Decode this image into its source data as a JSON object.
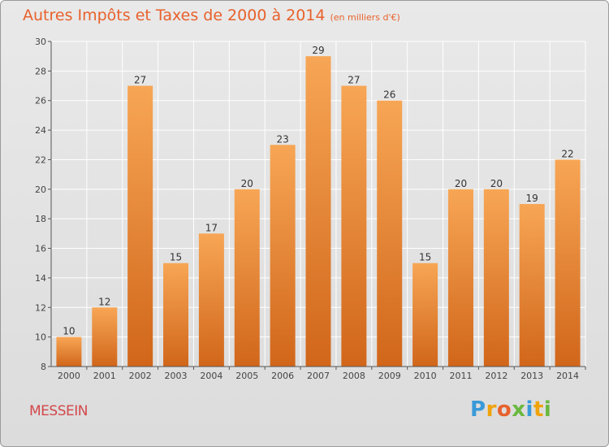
{
  "header": {
    "title": "Autres Impôts et Taxes de 2000 à 2014",
    "subtitle": "(en milliers d'€)"
  },
  "footer": {
    "commune": "MESSEIN",
    "logo_letters": [
      "P",
      "r",
      "o",
      "x",
      "i",
      "t",
      "i"
    ],
    "logo_colors": [
      "#3a9ad9",
      "#f0a30a",
      "#e8612c",
      "#6ab83f",
      "#3a9ad9",
      "#f0a30a",
      "#6ab83f"
    ]
  },
  "colors": {
    "bar_light": "#f7a655",
    "bar_dark": "#d1661a",
    "title": "#e8612c",
    "commune": "#d3484c"
  },
  "chart_data": {
    "type": "bar",
    "categories": [
      "2000",
      "2001",
      "2002",
      "2003",
      "2004",
      "2005",
      "2006",
      "2007",
      "2008",
      "2009",
      "2010",
      "2011",
      "2012",
      "2013",
      "2014"
    ],
    "values": [
      10,
      12,
      27,
      15,
      17,
      20,
      23,
      29,
      27,
      26,
      15,
      20,
      20,
      19,
      22
    ],
    "yticks": [
      8,
      10,
      12,
      14,
      16,
      18,
      20,
      22,
      24,
      26,
      28,
      30
    ],
    "ylim": [
      8,
      30
    ],
    "grid": true
  }
}
